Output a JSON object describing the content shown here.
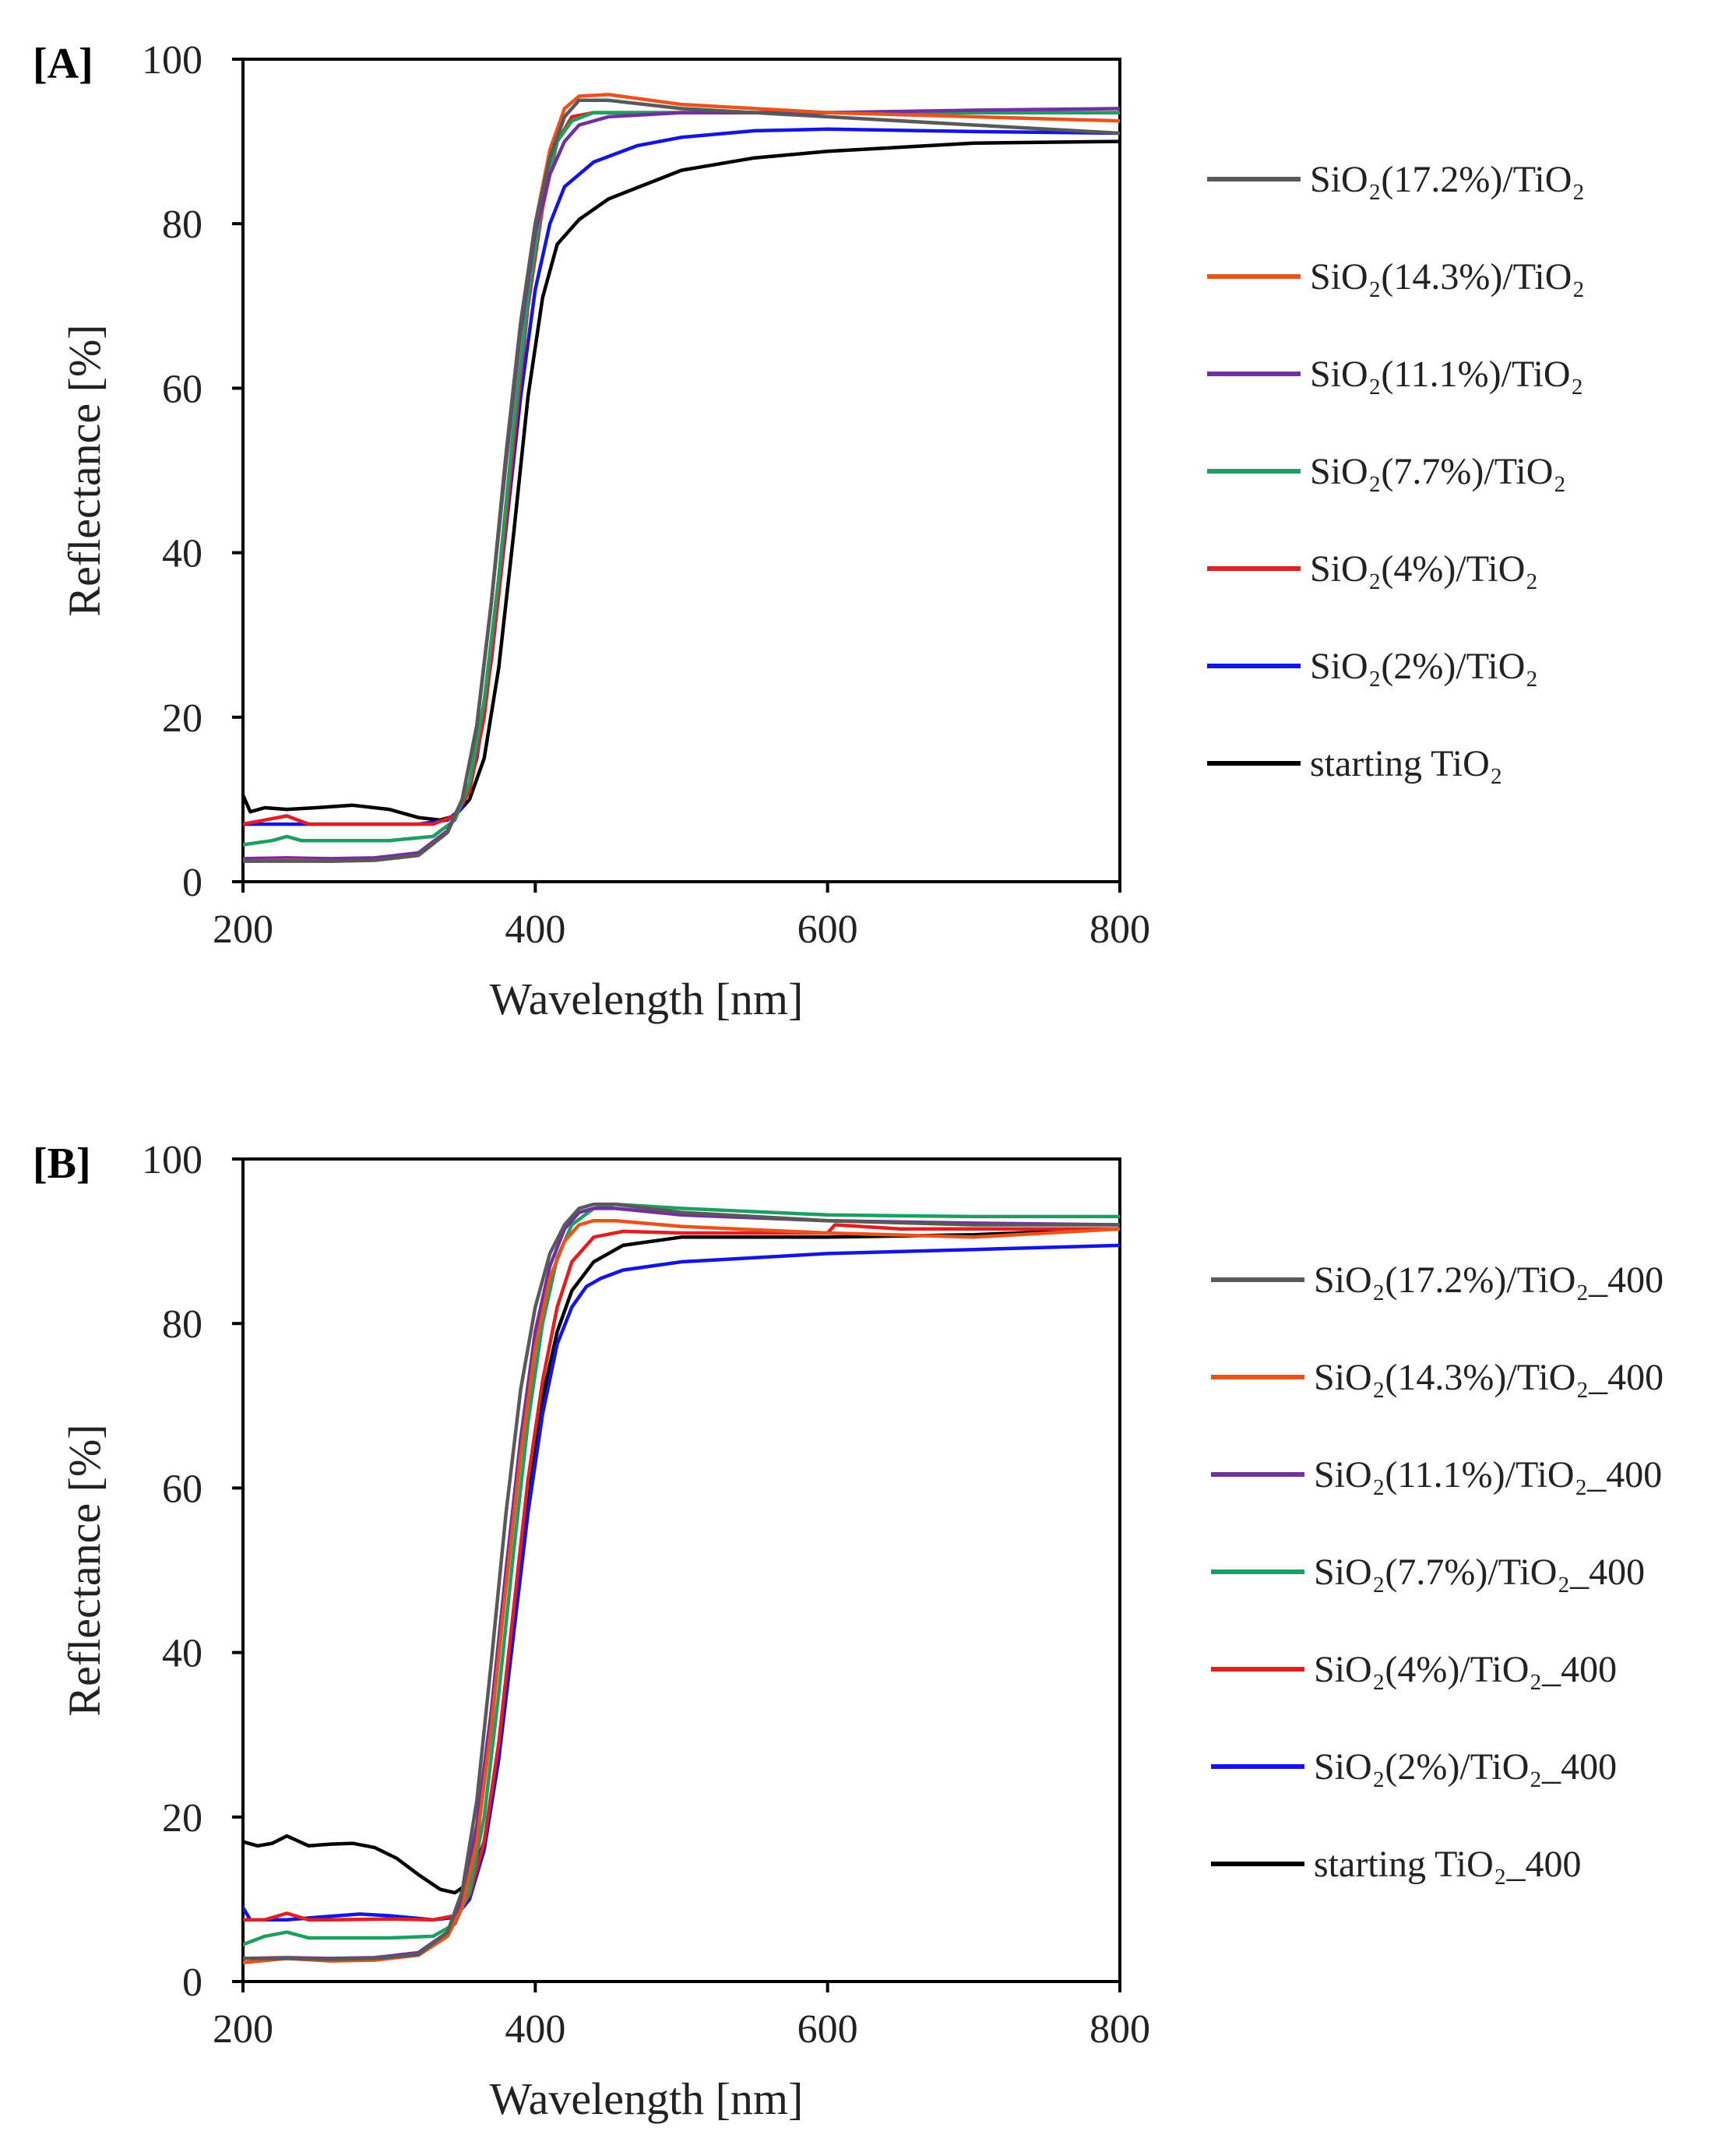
{
  "chart_data": [
    {
      "type": "line",
      "panel_label": "[A]",
      "xlabel": "Wavelength  [nm]",
      "ylabel": "Reflectance  [%]",
      "xlim": [
        200,
        800
      ],
      "ylim": [
        0,
        100
      ],
      "xticks": [
        200,
        400,
        600,
        800
      ],
      "yticks": [
        0,
        20,
        40,
        60,
        80,
        100
      ],
      "grid": false,
      "legend_position": "right",
      "series": [
        {
          "name": "SiO₂(17.2%)/TiO₂",
          "color": "#595959",
          "x": [
            200,
            230,
            260,
            290,
            320,
            340,
            350,
            360,
            370,
            380,
            390,
            400,
            410,
            420,
            430,
            450,
            500,
            600,
            700,
            800
          ],
          "y": [
            2.5,
            2.5,
            2.5,
            2.6,
            3.2,
            6,
            10,
            19,
            34,
            52,
            68,
            80,
            88,
            93,
            95,
            95,
            94,
            93,
            92,
            91
          ]
        },
        {
          "name": "SiO₂(14.3%)/TiO₂",
          "color": "#E8541E",
          "x": [
            200,
            230,
            260,
            290,
            320,
            340,
            350,
            360,
            370,
            380,
            390,
            400,
            410,
            420,
            430,
            450,
            500,
            600,
            700,
            800
          ],
          "y": [
            2.5,
            2.6,
            2.5,
            2.6,
            3.2,
            6,
            10,
            19,
            34,
            52,
            68,
            80,
            89,
            94,
            95.5,
            95.7,
            94.5,
            93.5,
            93,
            92.5
          ]
        },
        {
          "name": "SiO₂(11.1%)/TiO₂",
          "color": "#7030A0",
          "x": [
            200,
            230,
            260,
            290,
            320,
            340,
            350,
            360,
            370,
            380,
            390,
            400,
            410,
            420,
            430,
            450,
            500,
            600,
            700,
            800
          ],
          "y": [
            2.8,
            2.9,
            2.8,
            2.9,
            3.5,
            6.2,
            10,
            19,
            34,
            51,
            67,
            79,
            86,
            90,
            92,
            93,
            93.5,
            93.5,
            93.8,
            94
          ]
        },
        {
          "name": "SiO₂(7.7%)/TiO₂",
          "color": "#1F9E64",
          "x": [
            200,
            220,
            230,
            240,
            260,
            300,
            330,
            345,
            355,
            365,
            375,
            385,
            395,
            405,
            415,
            425,
            440,
            500,
            600,
            700,
            800
          ],
          "y": [
            4.5,
            5,
            5.5,
            5,
            5,
            5,
            5.5,
            7.5,
            12,
            22,
            37,
            55,
            71,
            83,
            90,
            92.5,
            93.5,
            93.5,
            93.5,
            93.5,
            93.5
          ]
        },
        {
          "name": "SiO₂(4%)/TiO₂",
          "color": "#E02020",
          "x": [
            200,
            215,
            230,
            245,
            260,
            300,
            330,
            345,
            355,
            365,
            375,
            385,
            395,
            405,
            415,
            425,
            440,
            500,
            600,
            700,
            800
          ],
          "y": [
            7,
            7.5,
            8,
            7,
            7,
            7,
            7,
            8,
            11,
            20,
            35,
            53,
            70,
            82,
            90,
            93,
            93.5,
            93.5,
            93.5,
            93.5,
            93.5
          ]
        },
        {
          "name": "SiO₂(2%)/TiO₂",
          "color": "#1515E0",
          "x": [
            200,
            230,
            260,
            290,
            320,
            340,
            350,
            360,
            370,
            380,
            390,
            400,
            410,
            420,
            440,
            470,
            500,
            550,
            600,
            700,
            800
          ],
          "y": [
            7,
            7,
            7,
            7,
            7,
            7.5,
            9,
            15,
            27,
            43,
            59,
            72,
            80,
            84.5,
            87.5,
            89.5,
            90.5,
            91.3,
            91.5,
            91.2,
            91
          ]
        },
        {
          "name": "starting  TiO₂",
          "color": "#000000",
          "x": [
            200,
            205,
            215,
            230,
            250,
            275,
            300,
            320,
            335,
            345,
            355,
            365,
            375,
            385,
            395,
            405,
            415,
            430,
            450,
            500,
            550,
            600,
            700,
            800
          ],
          "y": [
            10.5,
            8.5,
            9,
            8.8,
            9,
            9.3,
            8.8,
            7.8,
            7.5,
            8,
            10,
            15,
            26,
            42,
            59,
            71,
            77.5,
            80.5,
            83,
            86.5,
            88,
            88.8,
            89.8,
            90
          ]
        }
      ]
    },
    {
      "type": "line",
      "panel_label": "[B]",
      "xlabel": "Wavelength  [nm]",
      "ylabel": "Reflectance  [%]",
      "xlim": [
        200,
        800
      ],
      "ylim": [
        0,
        100
      ],
      "xticks": [
        200,
        400,
        600,
        800
      ],
      "yticks": [
        0,
        20,
        40,
        60,
        80,
        100
      ],
      "grid": false,
      "legend_position": "right",
      "series": [
        {
          "name": "SiO₂(17.2%)/TiO₂_400",
          "color": "#595959",
          "x": [
            200,
            230,
            260,
            290,
            320,
            340,
            350,
            360,
            370,
            380,
            390,
            400,
            410,
            420,
            430,
            440,
            455,
            500,
            600,
            700,
            800
          ],
          "y": [
            2.8,
            2.8,
            2.7,
            2.8,
            3.3,
            6,
            11,
            22,
            39,
            57,
            72,
            82,
            88.5,
            92,
            94,
            94.5,
            94.5,
            93.5,
            92.5,
            92,
            92
          ]
        },
        {
          "name": "SiO₂(14.3%)/TiO₂_400",
          "color": "#E8541E",
          "x": [
            200,
            230,
            260,
            290,
            320,
            340,
            350,
            360,
            370,
            380,
            390,
            400,
            410,
            420,
            430,
            440,
            455,
            500,
            600,
            700,
            800
          ],
          "y": [
            2.3,
            2.8,
            2.5,
            2.6,
            3.2,
            5.5,
            9,
            17,
            31,
            48,
            64,
            77,
            85.5,
            90,
            92,
            92.5,
            92.5,
            91.8,
            91,
            90.5,
            91.5
          ]
        },
        {
          "name": "SiO₂(11.1%)/TiO₂_400",
          "color": "#7030A0",
          "x": [
            200,
            230,
            260,
            290,
            320,
            340,
            350,
            360,
            370,
            380,
            390,
            400,
            410,
            420,
            430,
            440,
            455,
            500,
            600,
            700,
            800
          ],
          "y": [
            2.8,
            2.9,
            2.8,
            2.9,
            3.5,
            6,
            10,
            19,
            33,
            50,
            66,
            79,
            87,
            91.5,
            93.5,
            94,
            94,
            93.2,
            92.5,
            92.2,
            92
          ]
        },
        {
          "name": "SiO₂(7.7%)/TiO₂_400",
          "color": "#1F9E64",
          "x": [
            200,
            215,
            230,
            245,
            260,
            300,
            330,
            345,
            355,
            365,
            375,
            385,
            395,
            405,
            415,
            425,
            440,
            455,
            500,
            600,
            700,
            800
          ],
          "y": [
            4.5,
            5.5,
            6,
            5.3,
            5.3,
            5.3,
            5.5,
            7,
            11,
            20,
            35,
            52,
            68,
            80,
            88,
            92,
            94,
            94.5,
            94,
            93.2,
            93,
            93
          ]
        },
        {
          "name": "SiO₂(4%)/TiO₂_400",
          "color": "#E02020",
          "x": [
            200,
            215,
            230,
            245,
            260,
            300,
            330,
            345,
            355,
            365,
            375,
            385,
            395,
            405,
            415,
            425,
            440,
            460,
            500,
            600,
            605,
            650,
            700,
            800
          ],
          "y": [
            7.5,
            7.5,
            8.3,
            7.5,
            7.5,
            7.6,
            7.5,
            8,
            10.5,
            17,
            29,
            45,
            61,
            73,
            82,
            87.5,
            90.5,
            91.2,
            91,
            91,
            92,
            91.5,
            91.5,
            91.5
          ]
        },
        {
          "name": "SiO₂(2%)/TiO₂_400",
          "color": "#1515E0",
          "x": [
            200,
            205,
            215,
            230,
            250,
            280,
            300,
            330,
            345,
            355,
            365,
            375,
            385,
            395,
            405,
            415,
            425,
            435,
            445,
            460,
            500,
            600,
            700,
            800
          ],
          "y": [
            9,
            7.5,
            7.5,
            7.5,
            7.8,
            8.2,
            8,
            7.5,
            7.8,
            10,
            16,
            27,
            42,
            57,
            69,
            77.5,
            82,
            84.5,
            85.5,
            86.5,
            87.5,
            88.5,
            89,
            89.5
          ]
        },
        {
          "name": "starting  TiO₂_400",
          "color": "#000000",
          "x": [
            200,
            210,
            220,
            230,
            245,
            260,
            275,
            290,
            305,
            320,
            335,
            345,
            355,
            365,
            375,
            385,
            395,
            405,
            415,
            425,
            440,
            460,
            500,
            600,
            700,
            800
          ],
          "y": [
            17,
            16.5,
            16.8,
            17.7,
            16.5,
            16.7,
            16.8,
            16.3,
            15,
            13,
            11.2,
            10.8,
            12,
            17,
            28,
            44,
            59,
            71,
            79,
            84,
            87.5,
            89.5,
            90.5,
            90.5,
            90.8,
            91.5
          ]
        }
      ]
    }
  ]
}
